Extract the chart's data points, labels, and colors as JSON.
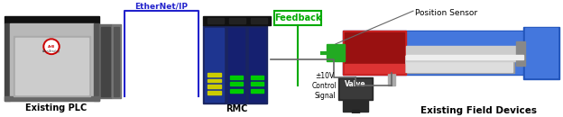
{
  "bg_color": "#ffffff",
  "labels": {
    "existing_plc": "Existing PLC",
    "ethernet_ip": "EtherNet/IP",
    "rmc": "RMC",
    "feedback": "Feedback",
    "control_signal": "±10V\nControl\nSignal",
    "valve": "Valve",
    "position_sensor": "Position Sensor",
    "existing_field_devices": "Existing Field Devices"
  },
  "colors": {
    "ethernet_ip_text": "#2222cc",
    "ethernet_ip_box": "#2222cc",
    "feedback_text": "#00aa00",
    "feedback_box": "#00aa00",
    "plc_silver": "#b8b8b8",
    "plc_dark": "#333333",
    "plc_mid": "#888888",
    "plc_light": "#d0d0d0",
    "plc_side_dark": "#555555",
    "rmc_blue_dark": "#1a2560",
    "rmc_blue_mid": "#1e3590",
    "rmc_led_yellow": "#cccc00",
    "rmc_led_green": "#00cc00",
    "rmc_top": "#111111",
    "valve_body": "#2a2a2a",
    "valve_mid": "#3a3a3a",
    "cyl_outer_blue": "#2255bb",
    "cyl_inner_blue": "#4477dd",
    "cyl_red": "#cc2222",
    "cyl_red_dark": "#991111",
    "cyl_gray": "#888888",
    "cyl_silver": "#cccccc",
    "cyl_rod_silver": "#bbbbbb",
    "sensor_green": "#22aa22",
    "line_gray": "#666666",
    "label_black": "#000000"
  }
}
